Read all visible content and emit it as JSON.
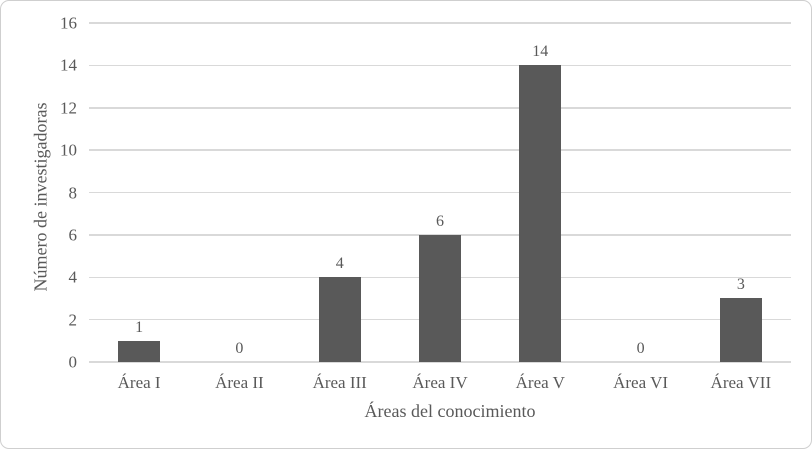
{
  "chart_data": {
    "type": "bar",
    "title": "",
    "categories": [
      "Área I",
      "Área II",
      "Área III",
      "Área IV",
      "Área V",
      "Área VI",
      "Área VII"
    ],
    "values": [
      1,
      0,
      4,
      6,
      14,
      0,
      3
    ],
    "data_labels": [
      "1",
      "0",
      "4",
      "6",
      "14",
      "0",
      "3"
    ],
    "xlabel": "Áreas del conocimiento",
    "ylabel": "Número de investigadoras",
    "ylim": [
      0,
      16
    ],
    "ytick_step": 2,
    "ytick_labels": [
      "0",
      "2",
      "4",
      "6",
      "8",
      "10",
      "12",
      "14",
      "16"
    ],
    "grid": "horizontal",
    "legend_position": "none",
    "colors": {
      "bar": "#595959",
      "gridline": "#d9d9d9",
      "text": "#595959",
      "frame_border": "#cfcfcf",
      "background": "#ffffff"
    }
  }
}
